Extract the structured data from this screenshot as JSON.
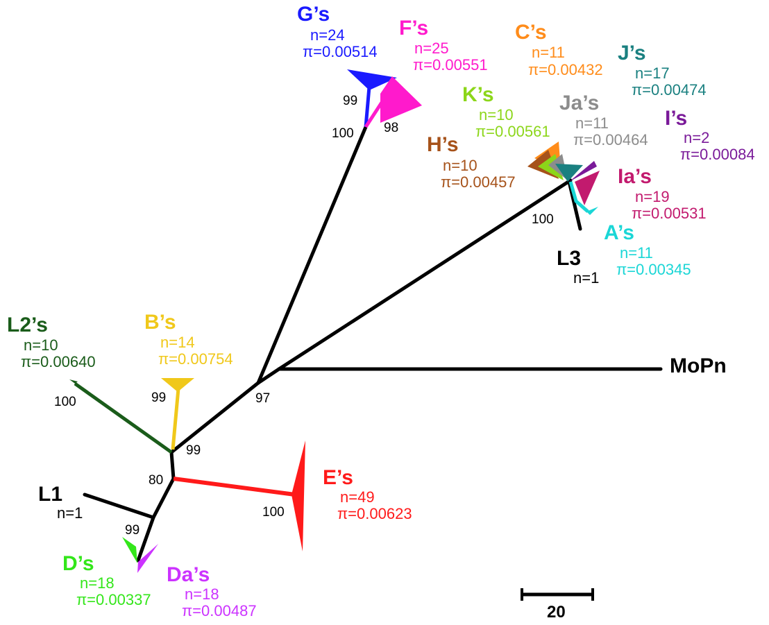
{
  "tree": {
    "root_label": "MoPn",
    "leaves": {
      "L1": {
        "name": "L1",
        "n": "n=1"
      },
      "L3": {
        "name": "L3",
        "n": "n=1"
      }
    },
    "clades": {
      "G": {
        "name": "G’s",
        "n": "n=24",
        "pi": "π=0.00514",
        "color": "#1a1aff"
      },
      "F": {
        "name": "F’s",
        "n": "n=25",
        "pi": "π=0.00551",
        "color": "#ff1acc"
      },
      "C": {
        "name": "C’s",
        "n": "n=11",
        "pi": "π=0.00432",
        "color": "#ff8c1a"
      },
      "J": {
        "name": "J’s",
        "n": "n=17",
        "pi": "π=0.00474",
        "color": "#1a8080"
      },
      "K": {
        "name": "K’s",
        "n": "n=10",
        "pi": "π=0.00561",
        "color": "#8cd61a"
      },
      "Ja": {
        "name": "Ja’s",
        "n": "n=11",
        "pi": "π=0.00464",
        "color": "#8c8c8c"
      },
      "I": {
        "name": "I’s",
        "n": "n=2",
        "pi": "π=0.00084",
        "color": "#7a1a99"
      },
      "H": {
        "name": "H’s",
        "n": "n=10",
        "pi": "π=0.00457",
        "color": "#a6521a"
      },
      "Ia": {
        "name": "Ia’s",
        "n": "n=19",
        "pi": "π=0.00531",
        "color": "#c21a6e"
      },
      "A": {
        "name": "A’s",
        "n": "n=11",
        "pi": "π=0.00345",
        "color": "#1ad6d6"
      },
      "L2": {
        "name": "L2’s",
        "n": "n=10",
        "pi": "π=0.00640",
        "color": "#1a5c1a"
      },
      "B": {
        "name": "B’s",
        "n": "n=14",
        "pi": "π=0.00754",
        "color": "#f0c81a"
      },
      "E": {
        "name": "E’s",
        "n": "n=49",
        "pi": "π=0.00623",
        "color": "#ff1a1a"
      },
      "D": {
        "name": "D’s",
        "n": "n=18",
        "pi": "π=0.00337",
        "color": "#33e61a"
      },
      "Da": {
        "name": "Da’s",
        "n": "n=18",
        "pi": "π=0.00487",
        "color": "#cc33ff"
      }
    },
    "bootstrap": {
      "gf_node": "100",
      "g": "99",
      "f": "98",
      "upper": "100",
      "main": "97",
      "l2": "100",
      "b": "99",
      "b_branch": "99",
      "lower": "80",
      "e": "100",
      "d": "99"
    },
    "scale_bar": {
      "label": "20"
    }
  }
}
